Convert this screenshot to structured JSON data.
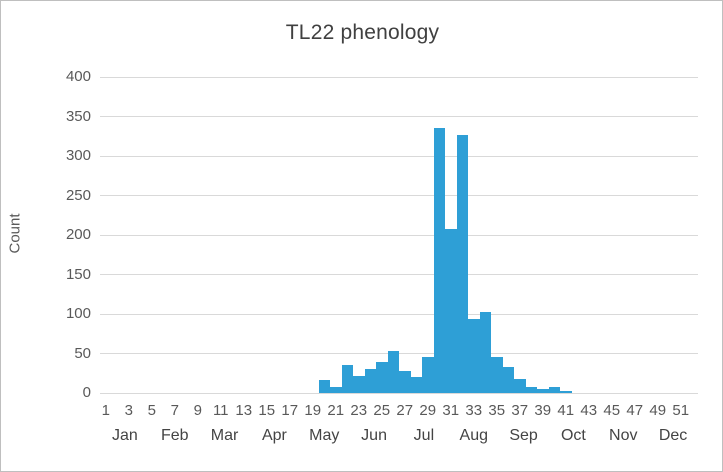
{
  "title": "TL22 phenology",
  "y_axis_title": "Count",
  "chart_data": {
    "type": "bar",
    "title": "TL22 phenology",
    "xlabel": "",
    "ylabel": "Count",
    "ylim": [
      0,
      400
    ],
    "yticks": [
      0,
      50,
      100,
      150,
      200,
      250,
      300,
      350,
      400
    ],
    "grid": true,
    "legend": false,
    "x_weeks": [
      1,
      2,
      3,
      4,
      5,
      6,
      7,
      8,
      9,
      10,
      11,
      12,
      13,
      14,
      15,
      16,
      17,
      18,
      19,
      20,
      21,
      22,
      23,
      24,
      25,
      26,
      27,
      28,
      29,
      30,
      31,
      32,
      33,
      34,
      35,
      36,
      37,
      38,
      39,
      40,
      41,
      42,
      43,
      44,
      45,
      46,
      47,
      48,
      49,
      50,
      51,
      52
    ],
    "counts": [
      0,
      0,
      0,
      0,
      0,
      0,
      0,
      0,
      0,
      0,
      0,
      0,
      0,
      0,
      0,
      0,
      0,
      0,
      0,
      17,
      8,
      36,
      22,
      30,
      39,
      53,
      28,
      20,
      46,
      336,
      208,
      326,
      94,
      103,
      46,
      33,
      18,
      8,
      5,
      7,
      3,
      0,
      0,
      0,
      0,
      0,
      0,
      0,
      0,
      0,
      0,
      0
    ],
    "xtick_labels": [
      "1",
      "3",
      "5",
      "7",
      "9",
      "11",
      "13",
      "15",
      "17",
      "19",
      "21",
      "23",
      "25",
      "27",
      "29",
      "31",
      "33",
      "35",
      "37",
      "39",
      "41",
      "43",
      "45",
      "47",
      "49",
      "51"
    ],
    "month_labels": [
      "Jan",
      "Feb",
      "Mar",
      "Apr",
      "May",
      "Jun",
      "Jul",
      "Aug",
      "Sep",
      "Oct",
      "Nov",
      "Dec"
    ],
    "bar_color": "#2e9fd6",
    "gridline_color": "#d9d9d9",
    "background_color": "#ffffff"
  }
}
